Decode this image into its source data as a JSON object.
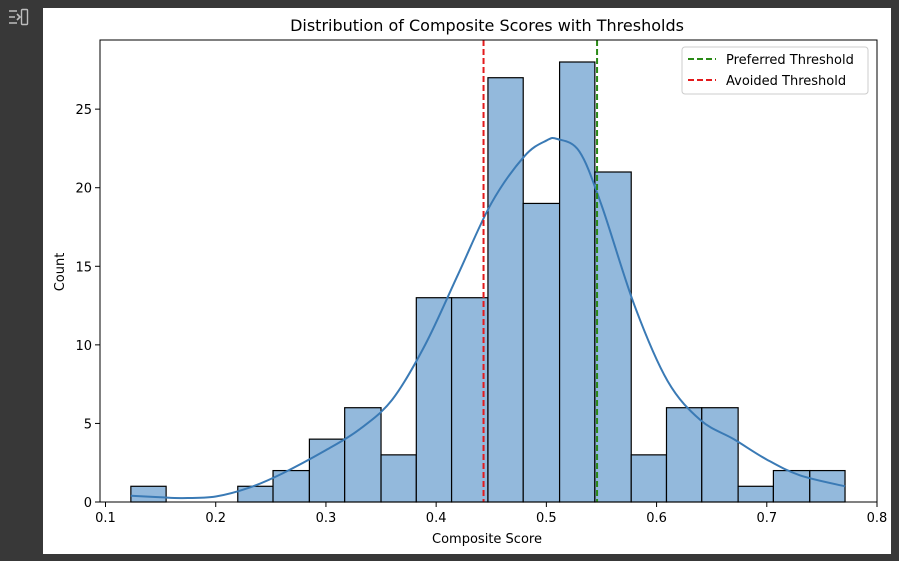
{
  "toolbar": {
    "output_toggle_icon": "output-collapse-icon"
  },
  "colors": {
    "bar_fill": "#93b9dc",
    "bar_edge": "#000000",
    "kde_line": "#3a7ab5",
    "preferred_line": "#2a8a16",
    "avoided_line": "#e31a1c"
  },
  "chart_data": {
    "type": "bar",
    "subtype": "histogram",
    "title": "Distribution of Composite Scores with Thresholds",
    "xlabel": "Composite Score",
    "ylabel": "Count",
    "xlim": [
      0.095,
      0.8
    ],
    "ylim": [
      0,
      29.4
    ],
    "xticks": [
      0.1,
      0.2,
      0.3,
      0.4,
      0.5,
      0.6,
      0.7,
      0.8
    ],
    "xtick_labels": [
      "0.1",
      "0.2",
      "0.3",
      "0.4",
      "0.5",
      "0.6",
      "0.7",
      "0.8"
    ],
    "yticks": [
      0,
      5,
      10,
      15,
      20,
      25
    ],
    "ytick_labels": [
      "0",
      "5",
      "10",
      "15",
      "20",
      "25"
    ],
    "bins": [
      {
        "x0": 0.123,
        "x1": 0.155,
        "count": 1
      },
      {
        "x0": 0.155,
        "x1": 0.188,
        "count": 0
      },
      {
        "x0": 0.188,
        "x1": 0.22,
        "count": 0
      },
      {
        "x0": 0.22,
        "x1": 0.252,
        "count": 1
      },
      {
        "x0": 0.252,
        "x1": 0.285,
        "count": 2
      },
      {
        "x0": 0.285,
        "x1": 0.317,
        "count": 4
      },
      {
        "x0": 0.317,
        "x1": 0.35,
        "count": 6
      },
      {
        "x0": 0.35,
        "x1": 0.382,
        "count": 3
      },
      {
        "x0": 0.382,
        "x1": 0.414,
        "count": 13
      },
      {
        "x0": 0.414,
        "x1": 0.447,
        "count": 13
      },
      {
        "x0": 0.447,
        "x1": 0.479,
        "count": 27
      },
      {
        "x0": 0.479,
        "x1": 0.512,
        "count": 19
      },
      {
        "x0": 0.512,
        "x1": 0.544,
        "count": 28
      },
      {
        "x0": 0.544,
        "x1": 0.577,
        "count": 21
      },
      {
        "x0": 0.577,
        "x1": 0.609,
        "count": 3
      },
      {
        "x0": 0.609,
        "x1": 0.641,
        "count": 6
      },
      {
        "x0": 0.641,
        "x1": 0.674,
        "count": 6
      },
      {
        "x0": 0.674,
        "x1": 0.706,
        "count": 1
      },
      {
        "x0": 0.706,
        "x1": 0.739,
        "count": 2
      },
      {
        "x0": 0.739,
        "x1": 0.771,
        "count": 2
      }
    ],
    "kde": {
      "x": [
        0.123,
        0.15,
        0.17,
        0.2,
        0.23,
        0.26,
        0.3,
        0.33,
        0.36,
        0.39,
        0.42,
        0.45,
        0.48,
        0.5,
        0.51,
        0.53,
        0.55,
        0.58,
        0.61,
        0.64,
        0.67,
        0.7,
        0.73,
        0.771
      ],
      "y": [
        0.4,
        0.3,
        0.25,
        0.35,
        0.9,
        1.8,
        3.3,
        4.6,
        6.5,
        10,
        14.5,
        19,
        22,
        23.0,
        23.1,
        22.3,
        18.9,
        12.5,
        7.7,
        5.2,
        4.0,
        2.7,
        1.7,
        1.0
      ]
    },
    "thresholds": [
      {
        "name": "Preferred Threshold",
        "x": 0.546,
        "style": "dashed",
        "color": "#2a8a16"
      },
      {
        "name": "Avoided Threshold",
        "x": 0.443,
        "style": "dashed",
        "color": "#e31a1c"
      }
    ],
    "legend": {
      "position": "top-right",
      "entries": [
        "Preferred Threshold",
        "Avoided Threshold"
      ]
    },
    "grid": false
  }
}
